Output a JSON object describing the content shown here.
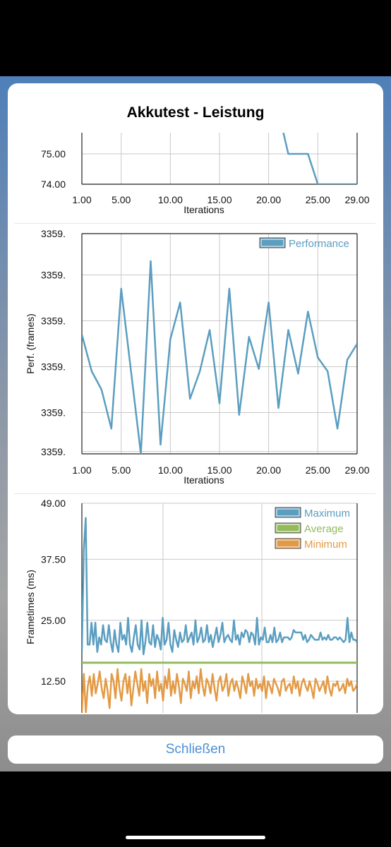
{
  "dialog": {
    "title": "Akkutest - Leistung",
    "close_label": "Schließen"
  },
  "colors": {
    "temperature_line": "#5b9ec0",
    "performance": "#5b9ec0",
    "maximum": "#5b9ec0",
    "average": "#93bb5c",
    "minimum": "#e39a45",
    "grid": "#c8c8c8",
    "accent": "#4a90d9"
  },
  "chart_data": [
    {
      "id": "temperature",
      "type": "line",
      "xlabel": "Iterations",
      "ylabel": "",
      "x_tick_labels": [
        "1.00",
        "5.00",
        "10.00",
        "15.00",
        "20.00",
        "25.00",
        "29.00"
      ],
      "x_ticks": [
        1,
        5,
        10,
        15,
        20,
        25,
        29
      ],
      "xlim": [
        1,
        29
      ],
      "y_tick_labels": [
        "75.00",
        "74.00"
      ],
      "y_ticks": [
        75,
        74
      ],
      "ylim": [
        74,
        75.7
      ],
      "grid": true,
      "series": [
        {
          "x": [
            22,
            23,
            24,
            25,
            26,
            27,
            28,
            29
          ],
          "values": [
            75.0,
            75.0,
            75.0,
            74.0,
            74.0,
            74.0,
            74.0,
            74.0
          ]
        }
      ]
    },
    {
      "id": "performance",
      "type": "line",
      "xlabel": "Iterations",
      "ylabel": "Perf. (frames)",
      "x_tick_labels": [
        "1.00",
        "5.00",
        "10.00",
        "15.00",
        "20.00",
        "25.00",
        "29.00"
      ],
      "x_ticks": [
        1,
        5,
        10,
        15,
        20,
        25,
        29
      ],
      "xlim": [
        1,
        29
      ],
      "y_tick_labels": [
        "3359.",
        "3359.",
        "3359.",
        "3359.",
        "3359.",
        "3359."
      ],
      "y_ticks": [
        0.05,
        0.9,
        1.9,
        2.9,
        3.9,
        4.8
      ],
      "ylim": [
        0,
        4.8
      ],
      "grid": true,
      "legend": {
        "position": "top-right",
        "entries": [
          "Performance"
        ]
      },
      "series": [
        {
          "name": "Performance",
          "x": [
            1,
            2,
            3,
            4,
            5,
            6,
            7,
            8,
            9,
            10,
            11,
            12,
            13,
            14,
            15,
            16,
            17,
            18,
            19,
            20,
            21,
            22,
            23,
            24,
            25,
            26,
            27,
            28,
            29
          ],
          "values": [
            2.6,
            1.8,
            1.4,
            0.55,
            3.6,
            1.8,
            0.0,
            4.2,
            0.2,
            2.5,
            3.3,
            1.2,
            1.8,
            2.7,
            1.1,
            3.6,
            0.85,
            2.55,
            1.85,
            3.3,
            1.0,
            2.7,
            1.75,
            3.1,
            2.1,
            1.8,
            0.55,
            2.05,
            2.4
          ]
        }
      ]
    },
    {
      "id": "frametimes",
      "type": "line",
      "xlabel": "",
      "ylabel": "Frametimes (ms)",
      "y_tick_labels": [
        "49.00",
        "37.50",
        "25.00",
        "12.50"
      ],
      "y_ticks": [
        49,
        37.5,
        25,
        12.5
      ],
      "ylim": [
        6,
        49
      ],
      "grid": true,
      "legend": {
        "position": "top-right",
        "entries": [
          "Maximum",
          "Average",
          "Minimum"
        ]
      },
      "series": [
        {
          "name": "Maximum",
          "values": [
            18.5,
            39.5,
            46.0,
            20.0,
            20.0,
            24.5,
            20.0,
            24.5,
            18.5,
            21.5,
            20.0,
            24.0,
            21.0,
            20.5,
            24.0,
            20.5,
            18.5,
            23.0,
            20.0,
            18.5,
            24.5,
            21.0,
            22.0,
            20.0,
            25.5,
            20.0,
            18.5,
            21.5,
            24.0,
            20.0,
            19.0,
            25.0,
            18.0,
            20.5,
            24.5,
            20.5,
            20.0,
            24.0,
            19.5,
            22.0,
            21.0,
            19.0,
            25.5,
            20.0,
            21.0,
            24.5,
            20.0,
            18.5,
            23.0,
            21.0,
            19.5,
            22.5,
            20.5,
            21.0,
            24.0,
            20.5,
            21.5,
            22.5,
            20.0,
            25.0,
            20.5,
            21.5,
            23.5,
            20.5,
            21.0,
            24.0,
            20.5,
            22.0,
            19.5,
            21.5,
            23.5,
            20.5,
            22.0,
            24.5,
            20.5,
            21.5,
            22.0,
            21.0,
            20.5,
            25.0,
            21.0,
            22.0,
            20.0,
            22.5,
            21.5,
            23.0,
            22.5,
            20.5,
            22.5,
            22.0,
            20.0,
            25.5,
            20.0,
            21.5,
            21.0,
            23.5,
            20.5,
            20.5,
            22.0,
            20.5,
            23.5,
            20.5,
            21.0,
            22.5,
            20.5,
            21.5,
            21.5,
            21.5,
            21.0,
            21.5,
            23.0,
            22.5,
            22.5,
            22.5,
            22.5,
            21.0,
            22.0,
            20.5,
            21.0,
            22.0,
            21.5,
            21.0,
            21.0,
            21.0,
            22.5,
            21.0,
            21.5,
            21.0,
            22.0,
            21.0,
            21.0,
            21.5,
            21.5,
            21.0,
            21.5,
            21.0,
            20.5,
            21.0,
            25.5,
            20.5,
            22.5,
            21.0,
            21.0,
            20.5
          ]
        },
        {
          "name": "Average",
          "values": [
            16.3,
            16.3,
            16.3,
            16.3,
            16.3,
            16.3,
            16.3,
            16.3,
            16.3,
            16.3,
            16.3,
            16.3,
            16.3,
            16.3,
            16.3,
            16.3,
            16.3,
            16.3,
            16.3,
            16.3,
            16.3,
            16.3,
            16.3,
            16.3,
            16.3,
            16.3,
            16.3,
            16.3,
            16.3,
            16.3,
            16.3,
            16.3,
            16.3,
            16.3,
            16.3,
            16.3,
            16.3,
            16.3,
            16.3,
            16.3
          ]
        },
        {
          "name": "Minimum",
          "values": [
            6.0,
            14.0,
            6.0,
            11.5,
            13.5,
            9.5,
            14.0,
            10.0,
            12.0,
            14.5,
            11.0,
            9.0,
            13.0,
            10.5,
            7.0,
            14.0,
            12.5,
            9.0,
            15.0,
            11.0,
            8.5,
            12.5,
            14.0,
            10.0,
            13.5,
            7.5,
            11.0,
            14.5,
            12.0,
            9.5,
            15.0,
            10.5,
            12.5,
            8.0,
            14.0,
            11.5,
            13.0,
            9.0,
            14.5,
            10.5,
            12.0,
            8.5,
            13.5,
            11.0,
            15.0,
            9.5,
            12.5,
            10.0,
            14.0,
            11.5,
            8.0,
            13.0,
            12.0,
            10.5,
            14.5,
            9.0,
            12.5,
            11.0,
            13.5,
            10.0,
            15.0,
            11.5,
            9.5,
            13.0,
            12.0,
            10.0,
            14.0,
            11.0,
            8.5,
            12.5,
            13.5,
            10.5,
            11.5,
            14.0,
            9.5,
            12.0,
            13.0,
            10.5,
            12.5,
            11.0,
            9.0,
            13.5,
            12.0,
            10.0,
            14.0,
            11.5,
            12.5,
            9.5,
            13.0,
            11.0,
            12.0,
            10.5,
            13.5,
            9.0,
            12.5,
            11.5,
            10.0,
            13.0,
            12.0,
            11.0,
            9.5,
            12.5,
            13.0,
            10.5,
            11.5,
            12.0,
            10.0,
            13.5,
            11.0,
            12.5,
            9.5,
            12.0,
            13.0,
            11.5,
            10.5,
            12.5,
            11.0,
            9.0,
            13.0,
            12.0,
            10.5,
            11.5,
            12.5,
            10.0,
            13.5,
            11.0,
            9.5,
            12.0,
            11.5,
            12.5,
            10.5,
            11.0,
            12.0,
            10.0,
            13.0,
            11.5,
            12.5,
            10.5,
            11.0,
            12.0
          ]
        }
      ]
    }
  ]
}
